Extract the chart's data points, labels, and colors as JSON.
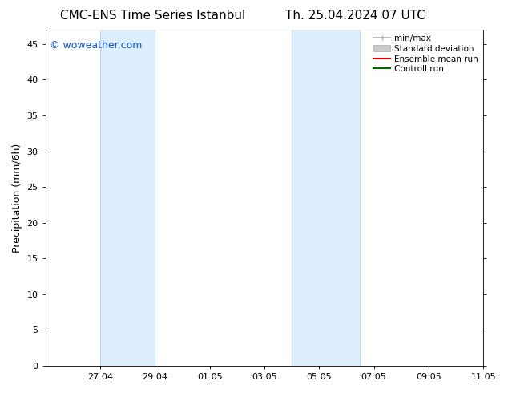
{
  "title_left": "CMC-ENS Time Series Istanbul",
  "title_right": "Th. 25.04.2024 07 UTC",
  "ylabel": "Precipitation (mm/6h)",
  "ylim": [
    0,
    47
  ],
  "yticks": [
    0,
    5,
    10,
    15,
    20,
    25,
    30,
    35,
    40,
    45
  ],
  "xtick_labels": [
    "27.04",
    "29.04",
    "01.05",
    "03.05",
    "05.05",
    "07.05",
    "09.05",
    "11.05"
  ],
  "xtick_positions": [
    2.0,
    4.0,
    6.0,
    8.0,
    10.0,
    12.0,
    14.0,
    16.0
  ],
  "x_min": 0.0,
  "x_max": 16.0,
  "shaded_bands": [
    {
      "x_start": 2.0,
      "x_end": 4.0
    },
    {
      "x_start": 9.0,
      "x_end": 11.5
    }
  ],
  "shaded_color": "#ddeeff",
  "shaded_edge_color": "#b8d4ec",
  "background_color": "#ffffff",
  "watermark_text": "© woweather.com",
  "watermark_color": "#1155cc",
  "legend_items": [
    {
      "label": "min/max",
      "color": "#aaaaaa",
      "lw": 1.2,
      "type": "errbar"
    },
    {
      "label": "Standard deviation",
      "color": "#cccccc",
      "lw": 6,
      "type": "band"
    },
    {
      "label": "Ensemble mean run",
      "color": "#dd0000",
      "lw": 1.5,
      "type": "line"
    },
    {
      "label": "Controll run",
      "color": "#006600",
      "lw": 1.5,
      "type": "line"
    }
  ],
  "title_fontsize": 11,
  "ylabel_fontsize": 9,
  "tick_fontsize": 8,
  "legend_fontsize": 7.5,
  "watermark_fontsize": 9
}
